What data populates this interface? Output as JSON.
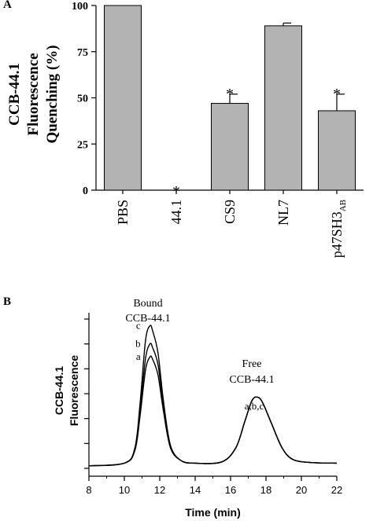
{
  "panel_a": {
    "label": "A",
    "chart_data": {
      "type": "bar",
      "ylabel_lines": [
        "CCB-44.1",
        "Fluorescence",
        "Quenching (%)"
      ],
      "categories": [
        "PBS",
        "44.1",
        "CS9",
        "NL7",
        "p47SH3"
      ],
      "category_subscripts": [
        "",
        "",
        "",
        "",
        "AB"
      ],
      "values": [
        100,
        0,
        47,
        89,
        43
      ],
      "errors": [
        0,
        0,
        5,
        1.5,
        9
      ],
      "significance": [
        "",
        "*",
        "*",
        "",
        "*"
      ],
      "yticks": [
        0,
        25,
        50,
        75,
        100
      ],
      "ylim": [
        0,
        100
      ],
      "bar_color": "#b3b3b3"
    }
  },
  "panel_b": {
    "label": "B",
    "chart_data": {
      "type": "line",
      "xlabel": "Time (min)",
      "ylabel_lines": [
        "CCB-44.1",
        "Fluorescence"
      ],
      "xlim": [
        8,
        22
      ],
      "xticks": [
        8,
        10,
        12,
        14,
        16,
        18,
        20,
        22
      ],
      "ytick_count": 7,
      "annotations": {
        "bound_lines": [
          "Bound",
          "CCB-44.1"
        ],
        "free_lines": [
          "Free",
          "CCB-44.1"
        ],
        "free_series": "a,b,c"
      },
      "series": [
        {
          "name": "a",
          "x": [
            8,
            10,
            10.6,
            10.9,
            11.2,
            11.45,
            11.6,
            11.9,
            12.2,
            12.6,
            13.2,
            14,
            15.5,
            16.3,
            16.8,
            17.2,
            17.5,
            17.8,
            18.3,
            18.9,
            19.5,
            20.5,
            22
          ],
          "y": [
            0.2,
            0.4,
            1.4,
            4.2,
            7.6,
            8.6,
            8.4,
            7.2,
            4.5,
            1.6,
            0.6,
            0.4,
            0.5,
            1.6,
            3.6,
            5.2,
            5.5,
            5.1,
            3.5,
            1.6,
            0.7,
            0.45,
            0.4
          ]
        },
        {
          "name": "b",
          "x": [
            8,
            10,
            10.6,
            10.9,
            11.2,
            11.45,
            11.6,
            11.9,
            12.2,
            12.6,
            13.2,
            14,
            15.5,
            16.3,
            16.8,
            17.2,
            17.5,
            17.8,
            18.3,
            18.9,
            19.5,
            20.5,
            22
          ],
          "y": [
            0.2,
            0.4,
            1.5,
            4.6,
            8.5,
            9.6,
            9.3,
            8.0,
            4.9,
            1.7,
            0.6,
            0.4,
            0.5,
            1.6,
            3.6,
            5.2,
            5.5,
            5.1,
            3.5,
            1.6,
            0.7,
            0.45,
            0.4
          ]
        },
        {
          "name": "c",
          "x": [
            8,
            10,
            10.6,
            10.9,
            11.2,
            11.45,
            11.6,
            11.9,
            12.2,
            12.6,
            13.2,
            14,
            15.5,
            16.3,
            16.8,
            17.2,
            17.5,
            17.8,
            18.3,
            18.9,
            19.5,
            20.5,
            22
          ],
          "y": [
            0.2,
            0.4,
            1.6,
            5.2,
            9.9,
            11.0,
            10.6,
            8.9,
            5.3,
            1.8,
            0.6,
            0.4,
            0.5,
            1.6,
            3.6,
            5.2,
            5.5,
            5.1,
            3.5,
            1.6,
            0.7,
            0.45,
            0.4
          ]
        }
      ]
    }
  }
}
